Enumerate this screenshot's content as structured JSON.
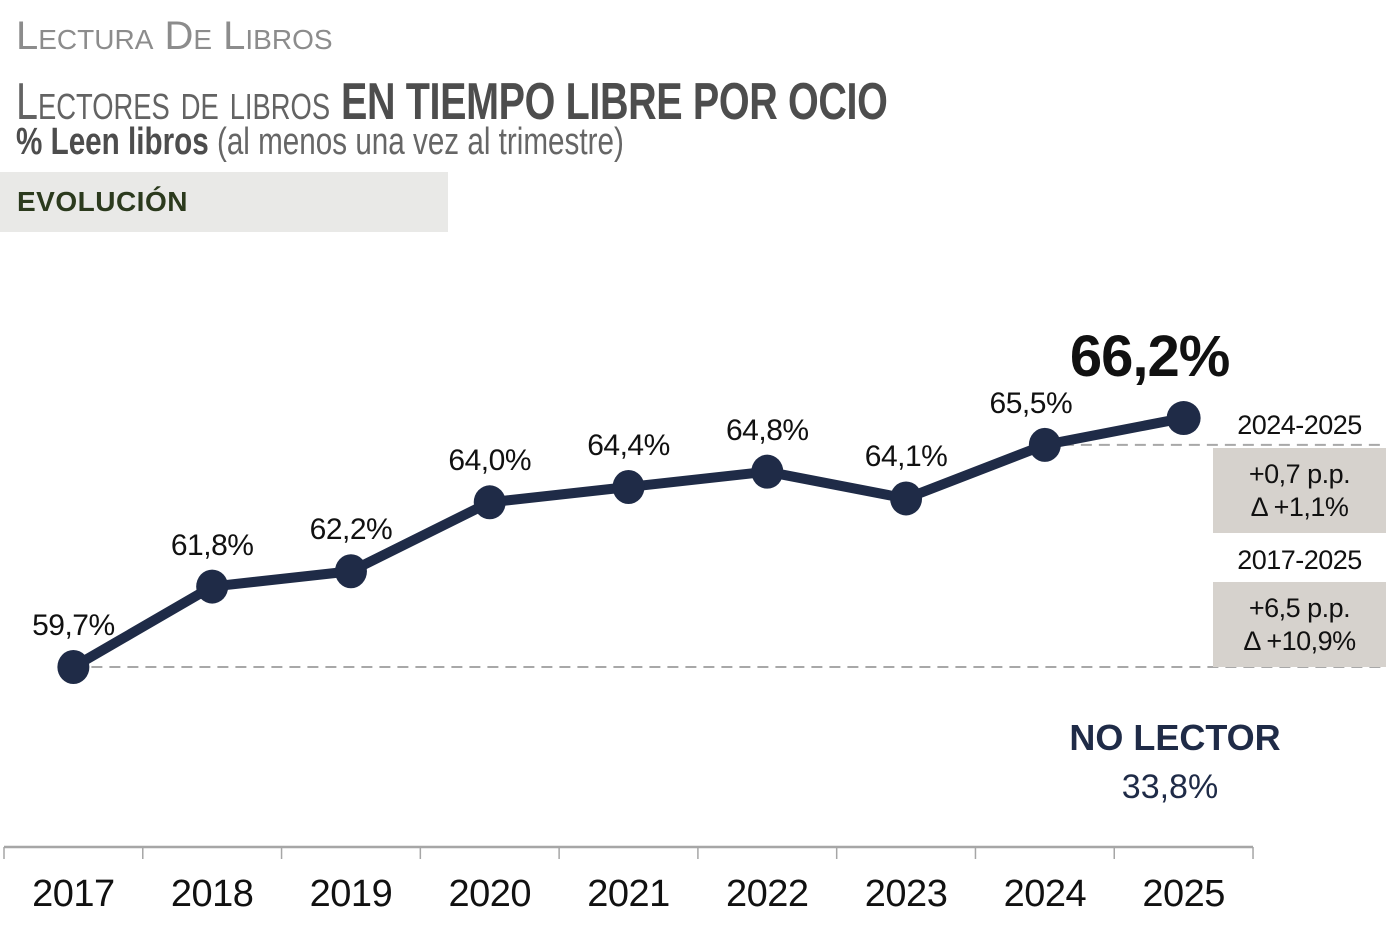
{
  "header": {
    "kicker": "Lectura De Libros",
    "title_regular": "Lectores de libros ",
    "title_bold": "EN TIEMPO LIBRE POR OCIO",
    "subtitle_bold": "% Leen libros",
    "subtitle_note": " (al menos una vez al trimestre)",
    "banner": "EVOLUCIÓN"
  },
  "chart_data": {
    "type": "line",
    "title": "Lectores de libros en tiempo libre por ocio",
    "ylabel": "% Leen libros (al menos una vez al trimestre)",
    "categories": [
      "2017",
      "2018",
      "2019",
      "2020",
      "2021",
      "2022",
      "2023",
      "2024",
      "2025"
    ],
    "values": [
      59.7,
      61.8,
      62.2,
      64.0,
      64.4,
      64.8,
      64.1,
      65.5,
      66.2
    ],
    "point_labels": [
      "59,7%",
      "61,8%",
      "62,2%",
      "64,0%",
      "64,4%",
      "64,8%",
      "64,1%",
      "65,5%",
      "66,2%"
    ],
    "highlight_category": "2025",
    "ylim": [
      58,
      68
    ],
    "grid": false,
    "legend": "none",
    "baselines": [
      {
        "at_category": "2017",
        "value": 59.7
      },
      {
        "at_category": "2024",
        "value": 65.5
      }
    ]
  },
  "annotations": {
    "change_recent": {
      "period": "2024-2025",
      "pp": "+0,7 p.p.",
      "delta": "Δ +1,1%"
    },
    "change_total": {
      "period": "2017-2025",
      "pp": "+6,5 p.p.",
      "delta": "Δ +10,9%"
    },
    "no_lector": {
      "label": "NO LECTOR",
      "value": "33,8%"
    }
  },
  "colors": {
    "navy": "#1f2b47",
    "box_bg": "#d6d2cd",
    "banner_bg": "#e9e9e7",
    "banner_text": "#2b3a1d",
    "axis_line": "#a6a6a6",
    "dash_line": "#a8a8a8",
    "label_text": "#111111",
    "kicker_text": "#8c8c8c",
    "title_regular_text": "#636363",
    "title_bold_text": "#4d4d4d"
  }
}
